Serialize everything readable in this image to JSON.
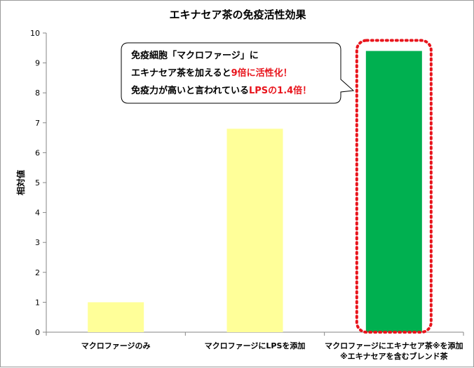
{
  "chart_data": {
    "type": "bar",
    "title": "エキナセア茶の免疫活性効果",
    "ylabel": "相対値",
    "ylim": [
      0,
      10
    ],
    "yticks": [
      0,
      1,
      2,
      3,
      4,
      5,
      6,
      7,
      8,
      9,
      10
    ],
    "grid": false,
    "categories": [
      [
        "マクロファージのみ"
      ],
      [
        "マクロファージにLPSを添加"
      ],
      [
        "マクロファージにエキナセア茶※を添加",
        "※エキナセアを含むブレンド茶"
      ]
    ],
    "values": [
      1.0,
      6.8,
      9.4
    ],
    "colors": [
      "#ffff99",
      "#ffff99",
      "#00b050"
    ],
    "highlight": {
      "index": 2,
      "border_color": "#e8141c",
      "style": "dotted"
    }
  },
  "callout": {
    "lines": [
      [
        {
          "t": "免疫細胞「マクロファージ」に",
          "hl": false
        }
      ],
      [
        {
          "t": "エキナセア茶を加えると",
          "hl": false
        },
        {
          "t": "9倍に活性化！",
          "hl": true
        }
      ],
      [
        {
          "t": "免疫力が高いと言われている",
          "hl": false
        },
        {
          "t": "LPSの1.4倍！",
          "hl": true
        }
      ]
    ]
  }
}
